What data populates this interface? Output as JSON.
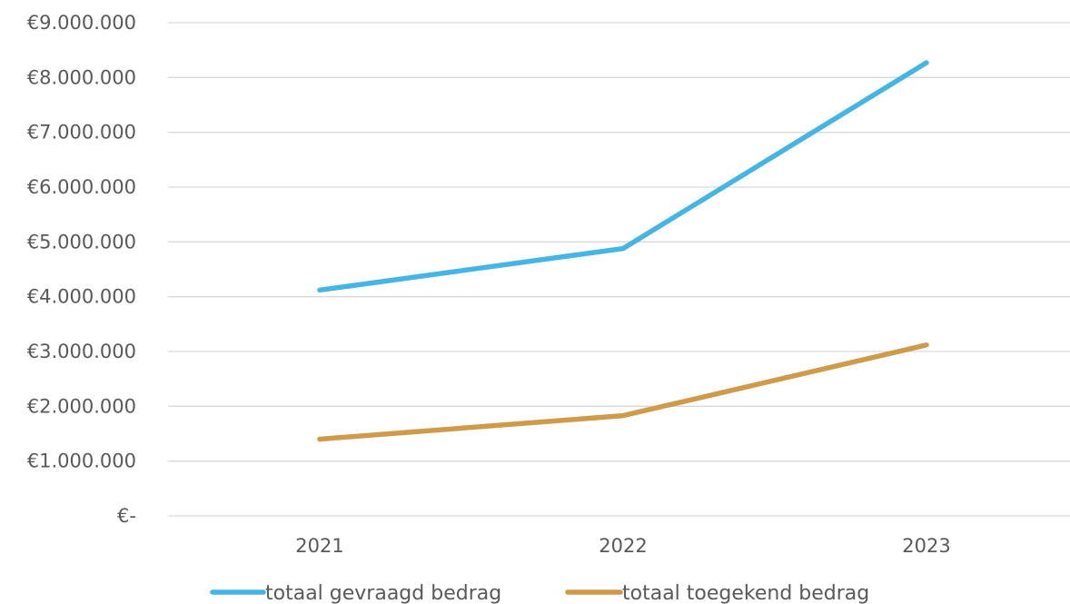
{
  "chart_data": {
    "type": "line",
    "categories": [
      "2021",
      "2022",
      "2023"
    ],
    "ylim": [
      0,
      9000000
    ],
    "y_ticks": [
      {
        "value": 0,
        "label": "€-"
      },
      {
        "value": 1000000,
        "label": "€1.000.000"
      },
      {
        "value": 2000000,
        "label": "€2.000.000"
      },
      {
        "value": 3000000,
        "label": "€3.000.000"
      },
      {
        "value": 4000000,
        "label": "€4.000.000"
      },
      {
        "value": 5000000,
        "label": "€5.000.000"
      },
      {
        "value": 6000000,
        "label": "€6.000.000"
      },
      {
        "value": 7000000,
        "label": "€7.000.000"
      },
      {
        "value": 8000000,
        "label": "€8.000.000"
      },
      {
        "value": 9000000,
        "label": "€9.000.000"
      }
    ],
    "series": [
      {
        "name": "totaal gevraagd bedrag",
        "color": "#45b5e3",
        "values": [
          4120000,
          4880000,
          8270000
        ]
      },
      {
        "name": "totaal toegekend bedrag",
        "color": "#cf9a49",
        "values": [
          1400000,
          1830000,
          3120000
        ]
      }
    ],
    "grid": true,
    "legend_position": "bottom",
    "title": "",
    "xlabel": "",
    "ylabel": ""
  }
}
